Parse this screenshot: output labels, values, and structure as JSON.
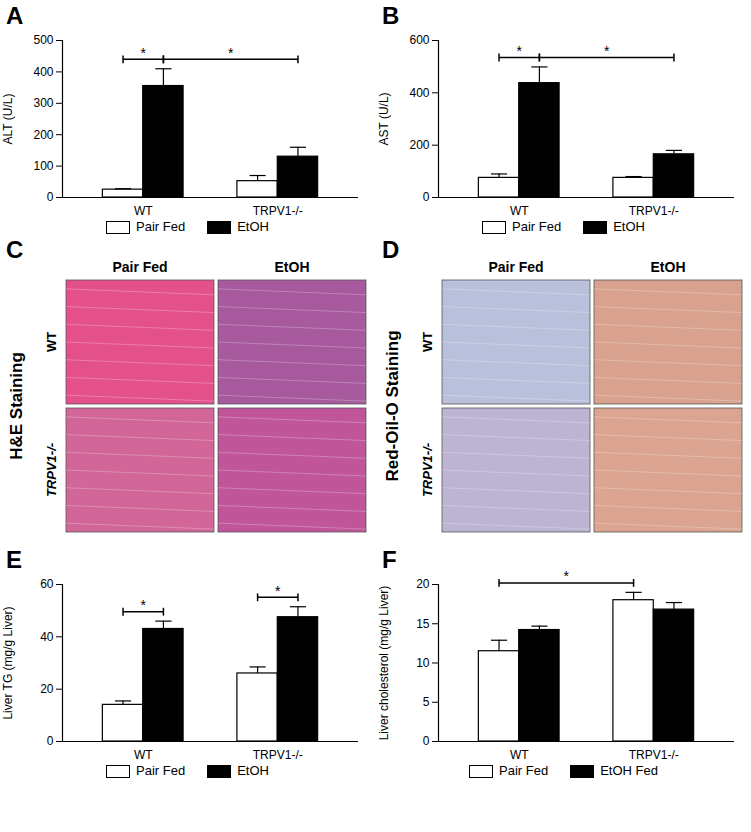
{
  "chart_data": [
    {
      "panel": "A",
      "type": "bar",
      "categories": [
        "WT",
        "TRPV1-/-"
      ],
      "series": [
        {
          "name": "Pair Fed",
          "color": "#ffffff",
          "values": [
            25,
            52
          ],
          "errors": [
            3,
            18
          ]
        },
        {
          "name": "EtOH",
          "color": "#000000",
          "values": [
            355,
            130
          ],
          "errors": [
            55,
            30
          ]
        }
      ],
      "y_label": "ALT (U/L)",
      "ylim": [
        0,
        500
      ],
      "yticks": [
        0,
        100,
        200,
        300,
        400,
        500
      ],
      "legend": "bottom",
      "significance": [
        {
          "from": [
            0,
            0
          ],
          "to": [
            0,
            1
          ],
          "label": "*"
        },
        {
          "from": [
            0,
            1
          ],
          "to": [
            1,
            1
          ],
          "label": "*"
        }
      ]
    },
    {
      "panel": "B",
      "type": "bar",
      "categories": [
        "WT",
        "TRPV1-/-"
      ],
      "series": [
        {
          "name": "Pair Fed",
          "color": "#ffffff",
          "values": [
            75,
            75
          ],
          "errors": [
            15,
            5
          ]
        },
        {
          "name": "EtOH",
          "color": "#000000",
          "values": [
            437,
            165
          ],
          "errors": [
            62,
            15
          ]
        }
      ],
      "y_label": "AST (U/L)",
      "ylim": [
        0,
        600
      ],
      "yticks": [
        0,
        200,
        400,
        600
      ],
      "legend": "bottom",
      "significance": [
        {
          "from": [
            0,
            0
          ],
          "to": [
            0,
            1
          ],
          "label": "*"
        },
        {
          "from": [
            0,
            1
          ],
          "to": [
            1,
            1
          ],
          "label": "*"
        }
      ]
    },
    {
      "panel": "C",
      "type": "image_grid",
      "title": "H&E Staining",
      "columns": [
        "Pair Fed",
        "EtOH"
      ],
      "rows": [
        "WT",
        "TRPV1-/-"
      ],
      "colors": [
        [
          "#e4508a",
          "#a85a9e"
        ],
        [
          "#d26699",
          "#c0559a"
        ]
      ]
    },
    {
      "panel": "D",
      "type": "image_grid",
      "title": "Red-Oil-O Staining",
      "columns": [
        "Pair Fed",
        "EtOH"
      ],
      "rows": [
        "WT",
        "TRPV1-/-"
      ],
      "colors": [
        [
          "#b9c0dc",
          "#d8a28e"
        ],
        [
          "#bcb4d2",
          "#dca592"
        ]
      ]
    },
    {
      "panel": "E",
      "type": "bar",
      "categories": [
        "WT",
        "TRPV1-/-"
      ],
      "series": [
        {
          "name": "Pair Fed",
          "color": "#ffffff",
          "values": [
            14,
            26
          ],
          "errors": [
            1.5,
            2.5
          ]
        },
        {
          "name": "EtOH",
          "color": "#000000",
          "values": [
            43,
            47.5
          ],
          "errors": [
            3,
            4
          ]
        }
      ],
      "y_label": "Liver TG (mg/g Liver)",
      "ylim": [
        0,
        60
      ],
      "yticks": [
        0,
        20,
        40,
        60
      ],
      "legend": "bottom",
      "significance": [
        {
          "from": [
            0,
            0
          ],
          "to": [
            0,
            1
          ],
          "label": "*"
        },
        {
          "from": [
            1,
            0
          ],
          "to": [
            1,
            1
          ],
          "label": "*"
        }
      ]
    },
    {
      "panel": "F",
      "type": "bar",
      "categories": [
        "WT",
        "TRPV1-/-"
      ],
      "series": [
        {
          "name": "Pair Fed",
          "color": "#ffffff",
          "values": [
            11.5,
            18
          ],
          "errors": [
            1.4,
            1
          ]
        },
        {
          "name": "EtOH Fed",
          "color": "#000000",
          "values": [
            14.2,
            16.8
          ],
          "errors": [
            0.5,
            0.9
          ]
        }
      ],
      "y_label": "Liver cholesterol (mg/g Liver)",
      "ylim": [
        0,
        20
      ],
      "yticks": [
        0,
        5,
        10,
        15,
        20
      ],
      "legend": "bottom",
      "significance": [
        {
          "from": [
            0,
            0
          ],
          "to": [
            1,
            0
          ],
          "label": "*"
        }
      ]
    }
  ]
}
